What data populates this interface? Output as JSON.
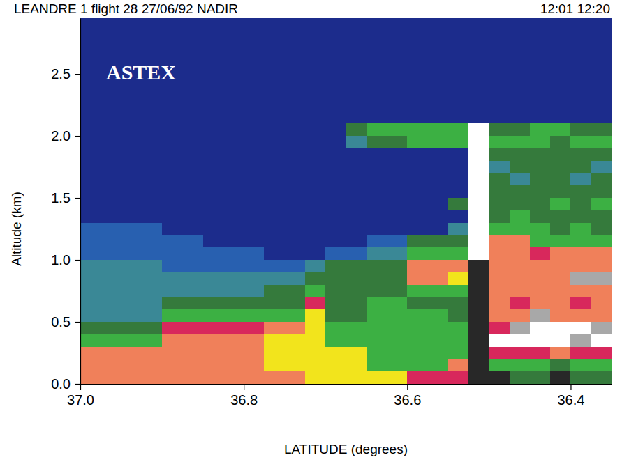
{
  "chart_data": {
    "type": "heatmap",
    "title": "LEANDRE 1 flight 28 27/06/92 NADIR",
    "subtitle": "12:01 12:20",
    "annotations": [
      "ASTEX"
    ],
    "xlabel": "LATITUDE (degrees)",
    "ylabel": "Altitude (km)",
    "xlim": [
      37.0,
      36.35
    ],
    "ylim": [
      0,
      2.95
    ],
    "xticks": [
      {
        "value": 37.0,
        "label": "37.0"
      },
      36.8,
      36.6,
      36.4
    ],
    "yticks": [
      {
        "value": 0,
        "label": "0.0"
      },
      0.5,
      {
        "value": 1.0,
        "label": "1.0"
      },
      1.5,
      {
        "value": 2.0,
        "label": "2.0"
      },
      2.5
    ],
    "colors": [
      "#1c2c8c",
      "#2860b0",
      "#3a8896",
      "#357a3c",
      "#3cb043",
      "#f2e41c",
      "#f0805a",
      "#d8285c",
      "#a8a8a8",
      "#ffffff",
      "#282828"
    ],
    "x_edges": [
      37.0,
      36.975,
      36.95,
      36.925,
      36.9,
      36.875,
      36.85,
      36.825,
      36.8,
      36.775,
      36.75,
      36.725,
      36.7,
      36.675,
      36.65,
      36.625,
      36.6,
      36.575,
      36.55,
      36.525,
      36.5,
      36.475,
      36.45,
      36.425,
      36.4,
      36.375,
      36.35
    ],
    "y_edges": [
      0,
      0.1,
      0.2,
      0.3,
      0.4,
      0.5,
      0.6,
      0.7,
      0.8,
      0.9,
      1.0,
      1.1,
      1.2,
      1.3,
      1.4,
      1.5,
      1.6,
      1.7,
      1.8,
      1.9,
      2.0,
      2.1,
      2.2,
      2.3,
      2.4,
      2.5,
      2.6,
      2.7,
      2.8,
      2.9,
      3.0
    ],
    "cells": [
      [
        6,
        6,
        6,
        6,
        6,
        6,
        6,
        6,
        6,
        6,
        6,
        5,
        5,
        5,
        5,
        5,
        7,
        7,
        7,
        10,
        10,
        3,
        3,
        10,
        3,
        3
      ],
      [
        6,
        6,
        6,
        6,
        6,
        6,
        6,
        6,
        6,
        5,
        5,
        5,
        5,
        5,
        4,
        4,
        4,
        4,
        6,
        10,
        4,
        4,
        4,
        3,
        4,
        4
      ],
      [
        6,
        6,
        6,
        6,
        6,
        6,
        6,
        6,
        6,
        5,
        5,
        5,
        5,
        5,
        4,
        4,
        4,
        4,
        4,
        10,
        7,
        7,
        7,
        6,
        7,
        7
      ],
      [
        4,
        4,
        4,
        4,
        6,
        6,
        6,
        6,
        6,
        5,
        5,
        5,
        4,
        4,
        4,
        4,
        4,
        4,
        4,
        10,
        9,
        9,
        9,
        9,
        8,
        9
      ],
      [
        3,
        3,
        3,
        3,
        7,
        7,
        7,
        7,
        7,
        6,
        6,
        5,
        4,
        4,
        4,
        4,
        4,
        4,
        4,
        10,
        7,
        8,
        9,
        9,
        9,
        8
      ],
      [
        2,
        2,
        2,
        2,
        4,
        4,
        4,
        4,
        4,
        4,
        4,
        5,
        3,
        3,
        4,
        4,
        4,
        4,
        3,
        10,
        6,
        6,
        8,
        6,
        6,
        6
      ],
      [
        2,
        2,
        2,
        2,
        3,
        3,
        3,
        3,
        3,
        3,
        3,
        7,
        3,
        3,
        4,
        4,
        3,
        3,
        3,
        10,
        6,
        7,
        6,
        6,
        7,
        6
      ],
      [
        2,
        2,
        2,
        2,
        2,
        2,
        2,
        2,
        2,
        3,
        3,
        4,
        3,
        3,
        3,
        3,
        4,
        4,
        4,
        10,
        6,
        6,
        6,
        6,
        6,
        6
      ],
      [
        2,
        2,
        2,
        2,
        2,
        2,
        2,
        2,
        2,
        2,
        2,
        3,
        3,
        3,
        3,
        3,
        6,
        6,
        5,
        10,
        6,
        6,
        6,
        6,
        8,
        8
      ],
      [
        2,
        2,
        2,
        2,
        1,
        1,
        1,
        1,
        1,
        1,
        1,
        2,
        3,
        3,
        3,
        3,
        6,
        6,
        6,
        10,
        6,
        6,
        6,
        6,
        6,
        6
      ],
      [
        1,
        1,
        1,
        1,
        1,
        1,
        1,
        1,
        1,
        0,
        0,
        0,
        1,
        1,
        2,
        2,
        4,
        4,
        4,
        9,
        6,
        6,
        7,
        6,
        6,
        6
      ],
      [
        1,
        1,
        1,
        1,
        1,
        1,
        0,
        0,
        0,
        0,
        0,
        0,
        0,
        0,
        1,
        1,
        3,
        3,
        3,
        9,
        6,
        6,
        4,
        4,
        4,
        4
      ],
      [
        1,
        1,
        1,
        1,
        0,
        0,
        0,
        0,
        0,
        0,
        0,
        0,
        0,
        0,
        0,
        0,
        0,
        0,
        2,
        9,
        4,
        4,
        4,
        3,
        4,
        3
      ],
      [
        0,
        0,
        0,
        0,
        0,
        0,
        0,
        0,
        0,
        0,
        0,
        0,
        0,
        0,
        0,
        0,
        0,
        0,
        0,
        9,
        3,
        4,
        3,
        3,
        3,
        3
      ],
      [
        0,
        0,
        0,
        0,
        0,
        0,
        0,
        0,
        0,
        0,
        0,
        0,
        0,
        0,
        0,
        0,
        0,
        0,
        3,
        9,
        3,
        3,
        3,
        4,
        3,
        4
      ],
      [
        0,
        0,
        0,
        0,
        0,
        0,
        0,
        0,
        0,
        0,
        0,
        0,
        0,
        0,
        0,
        0,
        0,
        0,
        0,
        9,
        3,
        3,
        3,
        3,
        3,
        3
      ],
      [
        0,
        0,
        0,
        0,
        0,
        0,
        0,
        0,
        0,
        0,
        0,
        0,
        0,
        0,
        0,
        0,
        0,
        0,
        0,
        9,
        3,
        2,
        3,
        3,
        2,
        3
      ],
      [
        0,
        0,
        0,
        0,
        0,
        0,
        0,
        0,
        0,
        0,
        0,
        0,
        0,
        0,
        0,
        0,
        0,
        0,
        0,
        9,
        2,
        3,
        3,
        3,
        3,
        2
      ],
      [
        0,
        0,
        0,
        0,
        0,
        0,
        0,
        0,
        0,
        0,
        0,
        0,
        0,
        0,
        0,
        0,
        0,
        0,
        0,
        9,
        3,
        3,
        3,
        3,
        3,
        3
      ],
      [
        0,
        0,
        0,
        0,
        0,
        0,
        0,
        0,
        0,
        0,
        0,
        0,
        0,
        2,
        3,
        3,
        4,
        4,
        4,
        9,
        4,
        4,
        4,
        3,
        4,
        4
      ],
      [
        0,
        0,
        0,
        0,
        0,
        0,
        0,
        0,
        0,
        0,
        0,
        0,
        0,
        3,
        4,
        4,
        4,
        4,
        4,
        9,
        3,
        3,
        4,
        4,
        3,
        3
      ],
      [
        0,
        0,
        0,
        0,
        0,
        0,
        0,
        0,
        0,
        0,
        0,
        0,
        0,
        0,
        0,
        0,
        0,
        0,
        0,
        0,
        0,
        0,
        0,
        0,
        0,
        0
      ],
      [
        0,
        0,
        0,
        0,
        0,
        0,
        0,
        0,
        0,
        0,
        0,
        0,
        0,
        0,
        0,
        0,
        0,
        0,
        0,
        0,
        0,
        0,
        0,
        0,
        0,
        0
      ],
      [
        0,
        0,
        0,
        0,
        0,
        0,
        0,
        0,
        0,
        0,
        0,
        0,
        0,
        0,
        0,
        0,
        0,
        0,
        0,
        0,
        0,
        0,
        0,
        0,
        0,
        0
      ],
      [
        0,
        0,
        0,
        0,
        0,
        0,
        0,
        0,
        0,
        0,
        0,
        0,
        0,
        0,
        0,
        0,
        0,
        0,
        0,
        0,
        0,
        0,
        0,
        0,
        0,
        0
      ],
      [
        0,
        0,
        0,
        0,
        0,
        0,
        0,
        0,
        0,
        0,
        0,
        0,
        0,
        0,
        0,
        0,
        0,
        0,
        0,
        0,
        0,
        0,
        0,
        0,
        0,
        0
      ],
      [
        0,
        0,
        0,
        0,
        0,
        0,
        0,
        0,
        0,
        0,
        0,
        0,
        0,
        0,
        0,
        0,
        0,
        0,
        0,
        0,
        0,
        0,
        0,
        0,
        0,
        0
      ],
      [
        0,
        0,
        0,
        0,
        0,
        0,
        0,
        0,
        0,
        0,
        0,
        0,
        0,
        0,
        0,
        0,
        0,
        0,
        0,
        0,
        0,
        0,
        0,
        0,
        0,
        0
      ],
      [
        0,
        0,
        0,
        0,
        0,
        0,
        0,
        0,
        0,
        0,
        0,
        0,
        0,
        0,
        0,
        0,
        0,
        0,
        0,
        0,
        0,
        0,
        0,
        0,
        0,
        0
      ],
      [
        0,
        0,
        0,
        0,
        0,
        0,
        0,
        0,
        0,
        0,
        0,
        0,
        0,
        0,
        0,
        0,
        0,
        0,
        0,
        0,
        0,
        0,
        0,
        0,
        0,
        0
      ]
    ]
  }
}
